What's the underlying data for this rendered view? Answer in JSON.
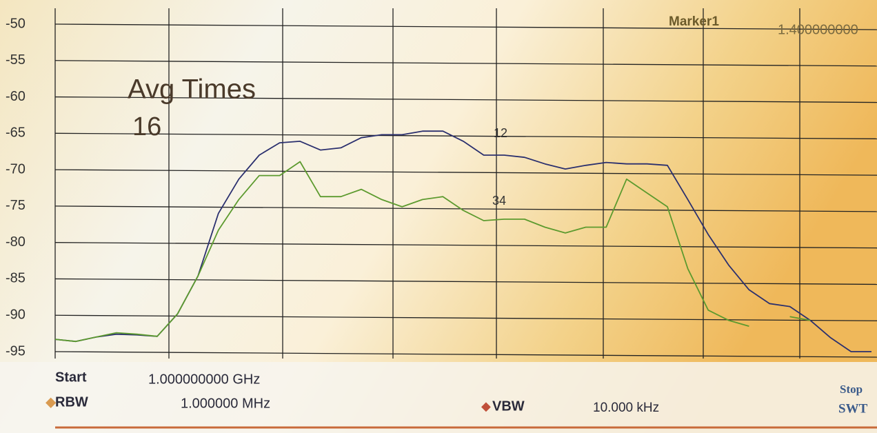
{
  "chart_data": {
    "type": "line",
    "ylim": [
      -95,
      -50
    ],
    "yticks": [
      -50,
      -55,
      -60,
      -65,
      -70,
      -75,
      -80,
      -85,
      -90,
      -95
    ],
    "grid": true,
    "series": [
      {
        "color": "#2a2f6e",
        "values": [
          -93.3,
          -93.6,
          -93,
          -92.6,
          -92.7,
          -92.9,
          -89.8,
          -84.6,
          -76,
          -71.3,
          -68,
          -66.3,
          -66.1,
          -67.3,
          -67,
          -65.6,
          -65.2,
          -65.2,
          -64.7,
          -64.7,
          -66.1,
          -68,
          -68,
          -68.3,
          -69.2,
          -69.9,
          -69.4,
          -69,
          -69.2,
          -69.2,
          -69.4,
          -74.1,
          -78.9,
          -83.1,
          -86.5,
          -88.4,
          -88.8,
          -90.7,
          -93.1,
          -95,
          -95
        ]
      },
      {
        "color": "#5c9a2e",
        "values": [
          -93.3,
          -93.6,
          -93,
          -92.4,
          -92.6,
          -92.9,
          -89.8,
          -84.6,
          -78.3,
          -74.1,
          -70.8,
          -70.8,
          -68.9,
          -73.7,
          -73.7,
          -72.7,
          -74.1,
          -75.1,
          -74.1,
          -73.7,
          -75.6,
          -77,
          -76.8,
          -76.8,
          -77.9,
          -78.7,
          -77.9,
          -77.9,
          -71.3,
          -73.2,
          -75.1,
          -83.6,
          -89.3,
          -90.7,
          -91.5,
          null,
          -90.2,
          -90.7,
          null,
          null,
          null
        ]
      }
    ],
    "annotations": {
      "marker_title": "Marker1",
      "marker_freq": "1.400000000",
      "avg_label": "Avg Times",
      "avg_count": "16",
      "marker_pair_top": "12",
      "marker_pair_bottom": "34"
    },
    "settings": {
      "start_label": "Start",
      "start_value": "1.000000000 GHz",
      "rbw_label": "RBW",
      "rbw_value": "1.000000 MHz",
      "vbw_label": "VBW",
      "vbw_value": "10.000 kHz",
      "stop_label": "Stop",
      "swt_label": "SWT"
    }
  }
}
